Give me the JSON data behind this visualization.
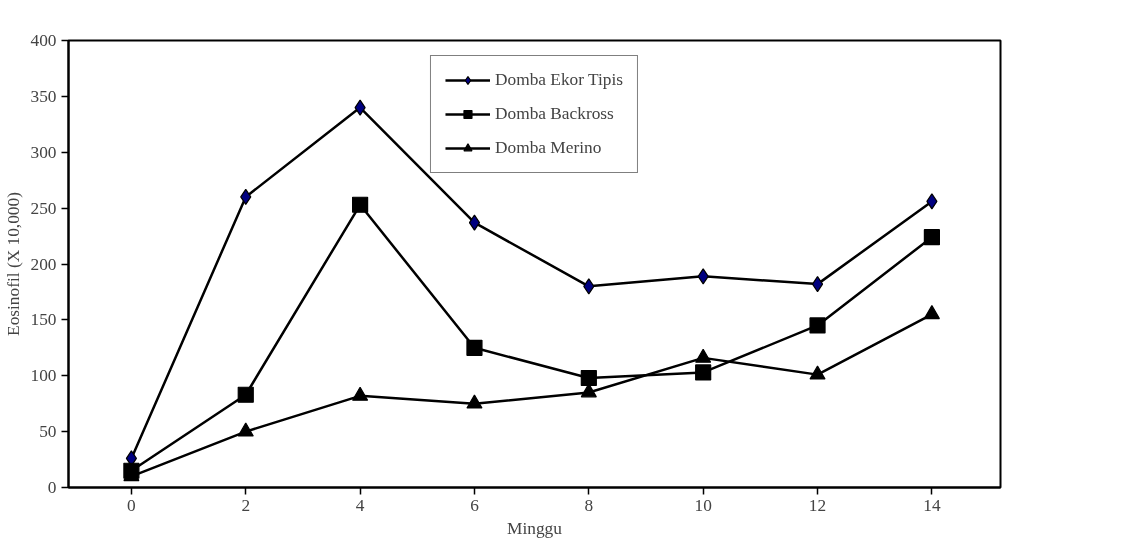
{
  "chart_data": {
    "type": "line",
    "xlabel": "Minggu",
    "ylabel": "Eosinofil (X 10,000)",
    "x": [
      0,
      2,
      4,
      6,
      8,
      10,
      12,
      14
    ],
    "series": [
      {
        "name": "Domba Ekor Tipis",
        "color": "#000080",
        "marker": "diamond",
        "values": [
          26,
          260,
          340,
          237,
          180,
          189,
          182,
          256
        ]
      },
      {
        "name": "Domba Backross",
        "color": "#000000",
        "marker": "square",
        "values": [
          15,
          83,
          253,
          125,
          98,
          103,
          145,
          224
        ]
      },
      {
        "name": "Domba Merino",
        "color": "#000000",
        "marker": "triangle",
        "values": [
          10,
          50,
          82,
          75,
          85,
          116,
          101,
          155
        ]
      }
    ],
    "xlim": [
      -1.1,
      15.2
    ],
    "xticks": [
      0,
      2,
      4,
      6,
      8,
      10,
      12,
      14
    ],
    "ylim": [
      0,
      400
    ],
    "yticks": [
      0,
      50,
      100,
      150,
      200,
      250,
      300,
      350,
      400
    ],
    "grid": false,
    "legend": "top",
    "line_style": "solid"
  }
}
